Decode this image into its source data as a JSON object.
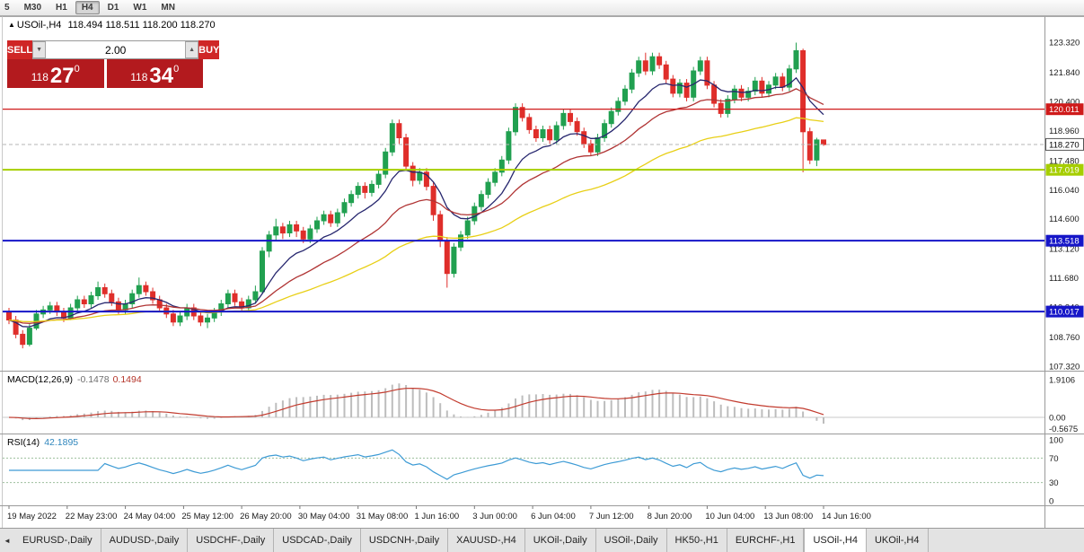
{
  "toolbar": {
    "items": [
      "5",
      "M30",
      "H1",
      "H4",
      "D1",
      "W1",
      "MN"
    ],
    "active": "H4"
  },
  "window": {
    "marker": "▲",
    "symbol": "USOil-,H4",
    "ohlc_text": "118.494 118.511 118.200 118.270"
  },
  "trade_panel": {
    "sell_label": "SELL",
    "buy_label": "BUY",
    "volume": "2.00",
    "spin_down": "▼",
    "spin_up": "▲",
    "sell_small": "118",
    "sell_big": "27",
    "sell_sup": "0",
    "buy_small": "118",
    "buy_big": "34",
    "buy_sup": "0"
  },
  "price_axis": {
    "ticks": [
      "123.320",
      "121.840",
      "120.400",
      "118.960",
      "117.480",
      "116.040",
      "114.600",
      "113.120",
      "111.680",
      "110.240",
      "108.760",
      "107.320"
    ]
  },
  "macd_panel": {
    "label": "MACD(12,26,9)",
    "value_main": "-0.1478",
    "value_signal": "0.1494",
    "scale": [
      "1.9106",
      "0.00",
      "-0.5675"
    ]
  },
  "rsi_panel": {
    "label": "RSI(14)",
    "value": "42.1895",
    "period": 14,
    "levels": [
      70,
      30
    ],
    "scale": [
      "100",
      "70",
      "30",
      "0"
    ]
  },
  "chart_data": {
    "type": "candlestick",
    "symbol": "USOil-,H4",
    "timeframe": "H4",
    "colors": {
      "bull": "#21a050",
      "bear": "#df2e2a",
      "macd_hist": "#bdbdbd",
      "macd_signal": "#c23b2e",
      "rsi": "#3d9bd5"
    },
    "overlays": [
      {
        "name": "ma-fast",
        "type": "ema",
        "period": 10,
        "color": "#26266e"
      },
      {
        "name": "ma-medium",
        "type": "ema",
        "period": 24,
        "color": "#b03434"
      },
      {
        "name": "ma-slow",
        "type": "ema",
        "period": 52,
        "color": "#e8cf16"
      }
    ],
    "hlines": [
      {
        "price": 120.011,
        "label": "120.011",
        "color": "#cf1a1a",
        "width": 1.3
      },
      {
        "price": 117.019,
        "label": "117.019",
        "color": "#a6ce00",
        "width": 2
      },
      {
        "price": 113.518,
        "label": "113.518",
        "color": "#1616c8",
        "width": 2
      },
      {
        "price": 110.017,
        "label": "110.017",
        "color": "#1616c8",
        "width": 2
      }
    ],
    "current_price": {
      "price": 118.27,
      "label": "118.270"
    },
    "y_ticks": [
      123.32,
      121.84,
      120.4,
      118.96,
      117.48,
      116.04,
      114.6,
      113.12,
      111.68,
      110.24,
      108.76,
      107.32
    ],
    "x_labels": [
      "19 May 2022",
      "22 May 23:00",
      "24 May 04:00",
      "25 May 12:00",
      "26 May 20:00",
      "30 May 04:00",
      "31 May 08:00",
      "1 Jun 16:00",
      "3 Jun 00:00",
      "6 Jun 04:00",
      "7 Jun 12:00",
      "8 Jun 20:00",
      "10 Jun 04:00",
      "13 Jun 08:00",
      "14 Jun 16:00"
    ],
    "candles": [
      [
        110.0,
        110.2,
        109.4,
        109.6
      ],
      [
        109.6,
        109.8,
        108.7,
        108.9
      ],
      [
        108.9,
        109.1,
        108.2,
        108.4
      ],
      [
        108.4,
        109.4,
        108.3,
        109.2
      ],
      [
        109.2,
        110.1,
        109.1,
        109.9
      ],
      [
        109.9,
        110.3,
        109.7,
        110.1
      ],
      [
        110.1,
        110.5,
        109.9,
        110.3
      ],
      [
        110.3,
        110.5,
        109.8,
        110.0
      ],
      [
        110.0,
        110.2,
        109.5,
        109.7
      ],
      [
        109.7,
        110.4,
        109.6,
        110.2
      ],
      [
        110.2,
        110.8,
        110.0,
        110.6
      ],
      [
        110.6,
        110.8,
        110.2,
        110.4
      ],
      [
        110.4,
        111.0,
        110.2,
        110.8
      ],
      [
        110.8,
        111.5,
        110.6,
        111.2
      ],
      [
        111.2,
        111.4,
        110.7,
        110.9
      ],
      [
        110.9,
        111.1,
        110.3,
        110.5
      ],
      [
        110.5,
        110.7,
        109.9,
        110.1
      ],
      [
        110.1,
        110.6,
        109.9,
        110.4
      ],
      [
        110.4,
        111.1,
        110.2,
        110.9
      ],
      [
        110.9,
        111.7,
        110.7,
        111.3
      ],
      [
        111.3,
        111.5,
        110.8,
        111.0
      ],
      [
        111.0,
        111.2,
        110.4,
        110.6
      ],
      [
        110.6,
        110.8,
        110.0,
        110.2
      ],
      [
        110.2,
        110.4,
        109.7,
        109.9
      ],
      [
        109.9,
        110.1,
        109.3,
        109.5
      ],
      [
        109.5,
        110.0,
        109.3,
        109.8
      ],
      [
        109.8,
        110.4,
        109.6,
        110.2
      ],
      [
        110.2,
        110.4,
        109.6,
        109.8
      ],
      [
        109.8,
        110.0,
        109.3,
        109.5
      ],
      [
        109.5,
        109.9,
        109.2,
        109.7
      ],
      [
        109.7,
        110.2,
        109.5,
        110.0
      ],
      [
        110.0,
        110.6,
        109.8,
        110.4
      ],
      [
        110.4,
        111.1,
        110.2,
        110.9
      ],
      [
        110.9,
        111.1,
        110.3,
        110.5
      ],
      [
        110.5,
        110.7,
        110.0,
        110.2
      ],
      [
        110.2,
        110.8,
        110.0,
        110.6
      ],
      [
        110.6,
        111.3,
        110.4,
        111.0
      ],
      [
        111.0,
        113.2,
        110.9,
        113.0
      ],
      [
        113.0,
        114.0,
        112.7,
        113.8
      ],
      [
        113.8,
        114.6,
        113.5,
        114.2
      ],
      [
        114.2,
        114.4,
        113.6,
        113.9
      ],
      [
        113.9,
        114.5,
        113.7,
        114.3
      ],
      [
        114.3,
        114.5,
        113.7,
        114.0
      ],
      [
        114.0,
        114.2,
        113.4,
        113.6
      ],
      [
        113.6,
        114.3,
        113.4,
        114.1
      ],
      [
        114.1,
        114.7,
        113.9,
        114.5
      ],
      [
        114.5,
        115.0,
        114.3,
        114.8
      ],
      [
        114.8,
        115.0,
        114.2,
        114.4
      ],
      [
        114.4,
        115.1,
        114.2,
        114.9
      ],
      [
        114.9,
        115.6,
        114.7,
        115.4
      ],
      [
        115.4,
        116.0,
        115.2,
        115.8
      ],
      [
        115.8,
        116.4,
        115.6,
        116.2
      ],
      [
        116.2,
        116.4,
        115.6,
        115.9
      ],
      [
        115.9,
        116.5,
        115.7,
        116.3
      ],
      [
        116.3,
        117.0,
        116.1,
        116.8
      ],
      [
        116.8,
        118.1,
        116.6,
        117.9
      ],
      [
        117.9,
        119.5,
        117.7,
        119.3
      ],
      [
        119.3,
        119.5,
        118.3,
        118.6
      ],
      [
        118.6,
        118.8,
        117.0,
        117.2
      ],
      [
        117.2,
        117.4,
        116.2,
        116.5
      ],
      [
        116.5,
        117.1,
        116.3,
        116.9
      ],
      [
        116.9,
        117.1,
        116.0,
        116.2
      ],
      [
        116.2,
        116.4,
        114.5,
        114.8
      ],
      [
        114.8,
        115.0,
        113.2,
        113.5
      ],
      [
        113.5,
        113.7,
        111.2,
        111.9
      ],
      [
        111.9,
        113.4,
        111.7,
        113.2
      ],
      [
        113.2,
        114.0,
        113.0,
        113.8
      ],
      [
        113.8,
        114.7,
        113.6,
        114.5
      ],
      [
        114.5,
        115.4,
        114.3,
        115.2
      ],
      [
        115.2,
        116.0,
        115.0,
        115.8
      ],
      [
        115.8,
        116.6,
        115.6,
        116.4
      ],
      [
        116.4,
        117.1,
        116.2,
        116.9
      ],
      [
        116.9,
        117.7,
        116.7,
        117.5
      ],
      [
        117.5,
        119.1,
        117.3,
        118.9
      ],
      [
        118.9,
        120.3,
        118.7,
        120.1
      ],
      [
        120.1,
        120.3,
        119.4,
        119.6
      ],
      [
        119.6,
        119.8,
        118.8,
        119.0
      ],
      [
        119.0,
        119.2,
        118.4,
        118.6
      ],
      [
        118.6,
        119.2,
        118.4,
        119.0
      ],
      [
        119.0,
        119.2,
        118.3,
        118.5
      ],
      [
        118.5,
        119.4,
        118.3,
        119.2
      ],
      [
        119.2,
        120.0,
        119.0,
        119.8
      ],
      [
        119.8,
        120.0,
        119.2,
        119.4
      ],
      [
        119.4,
        119.6,
        118.7,
        118.9
      ],
      [
        118.9,
        119.1,
        118.1,
        118.3
      ],
      [
        118.3,
        118.5,
        117.7,
        117.9
      ],
      [
        117.9,
        118.8,
        117.7,
        118.6
      ],
      [
        118.6,
        119.5,
        118.4,
        119.3
      ],
      [
        119.3,
        120.1,
        119.1,
        119.9
      ],
      [
        119.9,
        120.6,
        119.7,
        120.4
      ],
      [
        120.4,
        121.2,
        120.2,
        121.0
      ],
      [
        121.0,
        122.0,
        120.8,
        121.8
      ],
      [
        121.8,
        122.6,
        121.6,
        122.4
      ],
      [
        122.4,
        122.8,
        121.7,
        121.9
      ],
      [
        121.9,
        122.8,
        121.7,
        122.6
      ],
      [
        122.6,
        122.8,
        122.0,
        122.2
      ],
      [
        122.2,
        122.4,
        121.3,
        121.5
      ],
      [
        121.5,
        121.7,
        120.6,
        120.8
      ],
      [
        120.8,
        121.5,
        120.6,
        121.3
      ],
      [
        121.3,
        121.5,
        120.4,
        120.6
      ],
      [
        120.6,
        122.1,
        120.4,
        121.9
      ],
      [
        121.9,
        122.6,
        121.7,
        122.4
      ],
      [
        122.4,
        122.6,
        121.0,
        121.2
      ],
      [
        121.2,
        121.4,
        120.1,
        120.3
      ],
      [
        120.3,
        120.5,
        119.6,
        119.8
      ],
      [
        119.8,
        120.7,
        119.6,
        120.5
      ],
      [
        120.5,
        121.2,
        120.3,
        121.0
      ],
      [
        121.0,
        121.2,
        120.4,
        120.6
      ],
      [
        120.6,
        121.1,
        120.4,
        120.9
      ],
      [
        120.9,
        121.6,
        120.7,
        121.4
      ],
      [
        121.4,
        121.6,
        120.6,
        120.8
      ],
      [
        120.8,
        121.4,
        120.6,
        121.2
      ],
      [
        121.2,
        121.8,
        121.0,
        121.6
      ],
      [
        121.6,
        121.8,
        120.9,
        121.1
      ],
      [
        121.1,
        122.2,
        120.9,
        122.0
      ],
      [
        122.0,
        123.3,
        121.8,
        122.9
      ],
      [
        122.9,
        123.0,
        116.9,
        118.9
      ],
      [
        118.9,
        119.1,
        117.3,
        117.5
      ],
      [
        117.5,
        118.6,
        117.2,
        118.494
      ],
      [
        118.494,
        118.511,
        118.2,
        118.27
      ]
    ]
  },
  "tabs": {
    "scroll_left": "◄",
    "active": "USOil-,H4",
    "items": [
      "EURUSD-,Daily",
      "AUDUSD-,Daily",
      "USDCHF-,Daily",
      "USDCAD-,Daily",
      "USDCNH-,Daily",
      "XAUUSD-,H4",
      "UKOil-,Daily",
      "USOil-,Daily",
      "HK50-,H1",
      "EURCHF-,H1",
      "USOil-,H4",
      "UKOil-,H4"
    ]
  }
}
